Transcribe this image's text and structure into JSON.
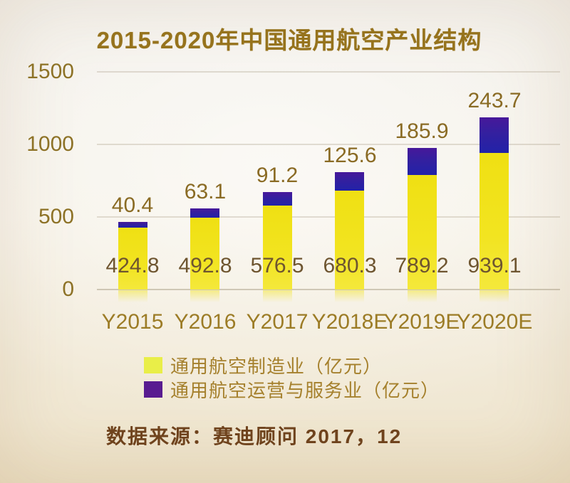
{
  "source_note": "数据来源：赛迪顾问 2017，12",
  "colors": {
    "background": "#f4f0e6",
    "title_text": "#96731d",
    "axis_tick_text": "#8d7226",
    "bar_yellow": "#f2e41c",
    "bar_blue_purple": "#2f1fa0",
    "top_label_text": "#8a6b24",
    "in_bar_label_text": "#6e5530",
    "x_label_text": "#9c7c26",
    "legend_text": "#a5802c",
    "legend_swatch_manufacturing": "#e9ee48",
    "legend_swatch_services": "#591b90",
    "source_text": "#6f431d",
    "gridline": "#a59980"
  },
  "chart_data": {
    "type": "bar",
    "stacked": true,
    "title": "2015-2020年中国通用航空产业结构",
    "categories": [
      "Y2015",
      "Y2016",
      "Y2017",
      "Y2018E",
      "Y2019E",
      "Y2020E"
    ],
    "series": [
      {
        "name": "通用航空制造业（亿元）",
        "color": "#f2e41c",
        "values": [
          424.8,
          492.8,
          576.5,
          680.3,
          789.2,
          939.1
        ],
        "label_position": "inside-bottom"
      },
      {
        "name": "通用航空运营与服务业（亿元）",
        "color": "#2f1fa0",
        "values": [
          40.4,
          63.1,
          91.2,
          125.6,
          185.9,
          243.7
        ],
        "label_position": "above-bar"
      }
    ],
    "yticks": [
      0,
      500,
      1000,
      1500
    ],
    "ylim": [
      0,
      1500
    ],
    "xlabel": "",
    "ylabel": "",
    "grid": true,
    "legend_position": "bottom-left",
    "value_label_decimals": 1
  }
}
